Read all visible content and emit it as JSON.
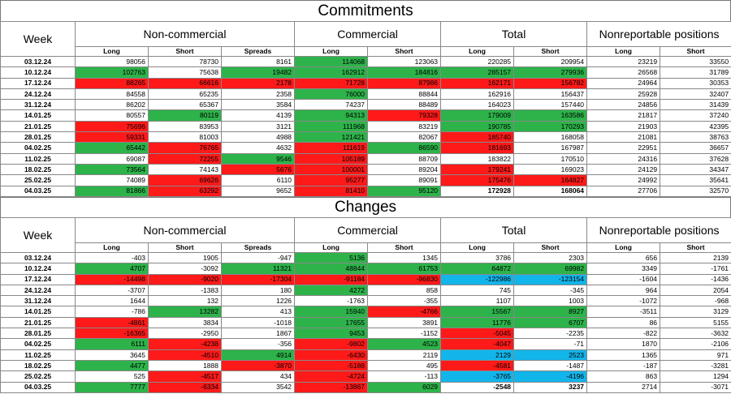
{
  "colors": {
    "up": "#2db34a",
    "down": "#ff1a1a",
    "total_flip": "#12b5ea"
  },
  "headers": {
    "week": "Week",
    "groups": [
      "Non-commercial",
      "Commercial",
      "Total",
      "Nonreportable positions"
    ],
    "sub": [
      "Long",
      "Short",
      "Spreads",
      "Long",
      "Short",
      "Long",
      "Short",
      "Long",
      "Short"
    ]
  },
  "commitments": {
    "title": "Commitments",
    "rows": [
      {
        "week": "03.12.24",
        "cells": [
          [
            "98056",
            ""
          ],
          [
            "78730",
            ""
          ],
          [
            "8161",
            ""
          ],
          [
            "114068",
            "g"
          ],
          [
            "123063",
            ""
          ],
          [
            "220285",
            ""
          ],
          [
            "209954",
            ""
          ],
          [
            "23219",
            ""
          ],
          [
            "33550",
            ""
          ]
        ]
      },
      {
        "week": "10.12.24",
        "cells": [
          [
            "102763",
            "g"
          ],
          [
            "75638",
            ""
          ],
          [
            "19482",
            "g"
          ],
          [
            "162912",
            "g"
          ],
          [
            "184816",
            "g"
          ],
          [
            "285157",
            "g"
          ],
          [
            "279936",
            "g"
          ],
          [
            "26568",
            ""
          ],
          [
            "31789",
            ""
          ]
        ]
      },
      {
        "week": "17.12.24",
        "cells": [
          [
            "88265",
            "r"
          ],
          [
            "66616",
            "r"
          ],
          [
            "2178",
            "r"
          ],
          [
            "71728",
            "r"
          ],
          [
            "87986",
            "r"
          ],
          [
            "162171",
            "r"
          ],
          [
            "156782",
            "r"
          ],
          [
            "24964",
            ""
          ],
          [
            "30353",
            ""
          ]
        ]
      },
      {
        "week": "24.12.24",
        "cells": [
          [
            "84558",
            ""
          ],
          [
            "65235",
            ""
          ],
          [
            "2358",
            ""
          ],
          [
            "76000",
            "g"
          ],
          [
            "88844",
            ""
          ],
          [
            "162916",
            ""
          ],
          [
            "156437",
            ""
          ],
          [
            "25928",
            ""
          ],
          [
            "32407",
            ""
          ]
        ]
      },
      {
        "week": "31.12.24",
        "cells": [
          [
            "86202",
            ""
          ],
          [
            "65367",
            ""
          ],
          [
            "3584",
            ""
          ],
          [
            "74237",
            ""
          ],
          [
            "88489",
            ""
          ],
          [
            "164023",
            ""
          ],
          [
            "157440",
            ""
          ],
          [
            "24856",
            ""
          ],
          [
            "31439",
            ""
          ]
        ]
      },
      {
        "week": "14.01.25",
        "cells": [
          [
            "80557",
            ""
          ],
          [
            "80119",
            "g"
          ],
          [
            "4139",
            ""
          ],
          [
            "94313",
            "g"
          ],
          [
            "79328",
            "r"
          ],
          [
            "179009",
            "g"
          ],
          [
            "163586",
            "g"
          ],
          [
            "21817",
            ""
          ],
          [
            "37240",
            ""
          ]
        ]
      },
      {
        "week": "21.01.25",
        "cells": [
          [
            "75696",
            "r"
          ],
          [
            "83953",
            ""
          ],
          [
            "3121",
            ""
          ],
          [
            "111968",
            "g"
          ],
          [
            "83219",
            ""
          ],
          [
            "190785",
            "g"
          ],
          [
            "170293",
            "g"
          ],
          [
            "21903",
            ""
          ],
          [
            "42395",
            ""
          ]
        ]
      },
      {
        "week": "28.01.25",
        "cells": [
          [
            "59331",
            "r"
          ],
          [
            "81003",
            ""
          ],
          [
            "4988",
            ""
          ],
          [
            "121421",
            "g"
          ],
          [
            "82067",
            ""
          ],
          [
            "185740",
            "r"
          ],
          [
            "168058",
            ""
          ],
          [
            "21081",
            ""
          ],
          [
            "38763",
            ""
          ]
        ]
      },
      {
        "week": "04.02.25",
        "cells": [
          [
            "65442",
            "g"
          ],
          [
            "76765",
            "r"
          ],
          [
            "4632",
            ""
          ],
          [
            "111619",
            "r"
          ],
          [
            "86590",
            "g"
          ],
          [
            "181693",
            "r"
          ],
          [
            "167987",
            ""
          ],
          [
            "22951",
            ""
          ],
          [
            "36657",
            ""
          ]
        ]
      },
      {
        "week": "11.02.25",
        "cells": [
          [
            "69087",
            ""
          ],
          [
            "72255",
            "r"
          ],
          [
            "9546",
            "g"
          ],
          [
            "105189",
            "r"
          ],
          [
            "88709",
            ""
          ],
          [
            "183822",
            ""
          ],
          [
            "170510",
            ""
          ],
          [
            "24316",
            ""
          ],
          [
            "37628",
            ""
          ]
        ]
      },
      {
        "week": "18.02.25",
        "cells": [
          [
            "73564",
            "g"
          ],
          [
            "74143",
            ""
          ],
          [
            "5676",
            "r"
          ],
          [
            "100001",
            "r"
          ],
          [
            "89204",
            ""
          ],
          [
            "179241",
            "r"
          ],
          [
            "169023",
            ""
          ],
          [
            "24129",
            ""
          ],
          [
            "34347",
            ""
          ]
        ]
      },
      {
        "week": "25.02.25",
        "cells": [
          [
            "74089",
            ""
          ],
          [
            "69626",
            "r"
          ],
          [
            "6110",
            ""
          ],
          [
            "95277",
            "r"
          ],
          [
            "89091",
            ""
          ],
          [
            "175476",
            "r"
          ],
          [
            "164827",
            "r"
          ],
          [
            "24992",
            ""
          ],
          [
            "35641",
            ""
          ]
        ]
      },
      {
        "week": "04.03.25",
        "cells": [
          [
            "81866",
            "g"
          ],
          [
            "63292",
            "r"
          ],
          [
            "9652",
            ""
          ],
          [
            "81410",
            "r"
          ],
          [
            "95120",
            "g"
          ],
          [
            "172928",
            "bold"
          ],
          [
            "168064",
            "bold"
          ],
          [
            "27706",
            ""
          ],
          [
            "32570",
            ""
          ]
        ]
      }
    ]
  },
  "changes": {
    "title": "Changes",
    "rows": [
      {
        "week": "03.12.24",
        "cells": [
          [
            "-403",
            ""
          ],
          [
            "1905",
            ""
          ],
          [
            "-947",
            ""
          ],
          [
            "5136",
            "g"
          ],
          [
            "1345",
            ""
          ],
          [
            "3786",
            ""
          ],
          [
            "2303",
            ""
          ],
          [
            "656",
            ""
          ],
          [
            "2139",
            ""
          ]
        ]
      },
      {
        "week": "10.12.24",
        "cells": [
          [
            "4707",
            "g"
          ],
          [
            "-3092",
            ""
          ],
          [
            "11321",
            "g"
          ],
          [
            "48844",
            "g"
          ],
          [
            "61753",
            "g"
          ],
          [
            "64872",
            "g"
          ],
          [
            "69982",
            "g"
          ],
          [
            "3349",
            ""
          ],
          [
            "-1761",
            ""
          ]
        ]
      },
      {
        "week": "17.12.24",
        "cells": [
          [
            "-14498",
            "r"
          ],
          [
            "-9020",
            "r"
          ],
          [
            "-17304",
            "r"
          ],
          [
            "-91184",
            "r"
          ],
          [
            "-96830",
            "r"
          ],
          [
            "-122986",
            "b"
          ],
          [
            "-123154",
            "b"
          ],
          [
            "-1604",
            ""
          ],
          [
            "-1436",
            ""
          ]
        ]
      },
      {
        "week": "24.12.24",
        "cells": [
          [
            "-3707",
            ""
          ],
          [
            "-1383",
            ""
          ],
          [
            "180",
            ""
          ],
          [
            "4272",
            "g"
          ],
          [
            "858",
            ""
          ],
          [
            "745",
            ""
          ],
          [
            "-345",
            ""
          ],
          [
            "964",
            ""
          ],
          [
            "2054",
            ""
          ]
        ]
      },
      {
        "week": "31.12.24",
        "cells": [
          [
            "1644",
            ""
          ],
          [
            "132",
            ""
          ],
          [
            "1226",
            ""
          ],
          [
            "-1763",
            ""
          ],
          [
            "-355",
            ""
          ],
          [
            "1107",
            ""
          ],
          [
            "1003",
            ""
          ],
          [
            "-1072",
            ""
          ],
          [
            "-968",
            ""
          ]
        ]
      },
      {
        "week": "14.01.25",
        "cells": [
          [
            "-786",
            ""
          ],
          [
            "13282",
            "g"
          ],
          [
            "413",
            ""
          ],
          [
            "15940",
            "g"
          ],
          [
            "-4766",
            "r"
          ],
          [
            "15567",
            "g"
          ],
          [
            "8927",
            "g"
          ],
          [
            "-3511",
            ""
          ],
          [
            "3129",
            ""
          ]
        ]
      },
      {
        "week": "21.01.25",
        "cells": [
          [
            "-4861",
            "r"
          ],
          [
            "3834",
            ""
          ],
          [
            "-1018",
            ""
          ],
          [
            "17655",
            "g"
          ],
          [
            "3891",
            ""
          ],
          [
            "11776",
            "g"
          ],
          [
            "6707",
            "g"
          ],
          [
            "86",
            ""
          ],
          [
            "5155",
            ""
          ]
        ]
      },
      {
        "week": "28.01.25",
        "cells": [
          [
            "-16365",
            "r"
          ],
          [
            "-2950",
            ""
          ],
          [
            "1867",
            ""
          ],
          [
            "9453",
            "g"
          ],
          [
            "-1152",
            ""
          ],
          [
            "-5045",
            "r"
          ],
          [
            "-2235",
            ""
          ],
          [
            "-822",
            ""
          ],
          [
            "-3632",
            ""
          ]
        ]
      },
      {
        "week": "04.02.25",
        "cells": [
          [
            "6111",
            "g"
          ],
          [
            "-4238",
            "r"
          ],
          [
            "-356",
            ""
          ],
          [
            "-9802",
            "r"
          ],
          [
            "4523",
            "g"
          ],
          [
            "-4047",
            "r"
          ],
          [
            "-71",
            ""
          ],
          [
            "1870",
            ""
          ],
          [
            "-2106",
            ""
          ]
        ]
      },
      {
        "week": "11.02.25",
        "cells": [
          [
            "3645",
            ""
          ],
          [
            "-4510",
            "r"
          ],
          [
            "4914",
            "g"
          ],
          [
            "-6430",
            "r"
          ],
          [
            "2119",
            ""
          ],
          [
            "2129",
            "b"
          ],
          [
            "2523",
            "b"
          ],
          [
            "1365",
            ""
          ],
          [
            "971",
            ""
          ]
        ]
      },
      {
        "week": "18.02.25",
        "cells": [
          [
            "4477",
            "g"
          ],
          [
            "1888",
            ""
          ],
          [
            "-3870",
            "r"
          ],
          [
            "-5188",
            "r"
          ],
          [
            "495",
            ""
          ],
          [
            "-4581",
            "r"
          ],
          [
            "-1487",
            ""
          ],
          [
            "-187",
            ""
          ],
          [
            "-3281",
            ""
          ]
        ]
      },
      {
        "week": "25.02.25",
        "cells": [
          [
            "525",
            ""
          ],
          [
            "-4517",
            "r"
          ],
          [
            "434",
            ""
          ],
          [
            "-4724",
            "r"
          ],
          [
            "-113",
            ""
          ],
          [
            "-3765",
            "b"
          ],
          [
            "-4196",
            "b"
          ],
          [
            "863",
            ""
          ],
          [
            "1294",
            ""
          ]
        ]
      },
      {
        "week": "04.03.25",
        "cells": [
          [
            "7777",
            "g"
          ],
          [
            "-6334",
            "r"
          ],
          [
            "3542",
            ""
          ],
          [
            "-13867",
            "r"
          ],
          [
            "6029",
            "g"
          ],
          [
            "-2548",
            "bold"
          ],
          [
            "3237",
            "bold"
          ],
          [
            "2714",
            ""
          ],
          [
            "-3071",
            ""
          ]
        ]
      }
    ]
  }
}
